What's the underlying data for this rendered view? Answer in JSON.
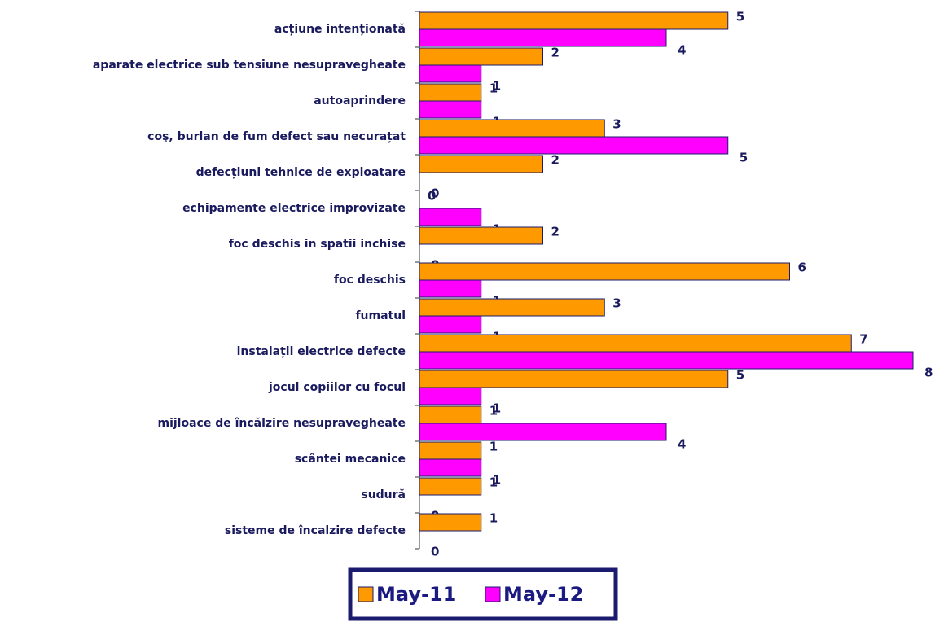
{
  "chart_data": {
    "type": "bar",
    "orientation": "horizontal",
    "categories": [
      "acțiune intenționată",
      "aparate electrice sub tensiune nesupravegheate",
      "autoaprindere",
      "coş, burlan  de fum defect sau necurațat",
      "defecțiuni tehnice de exploatare",
      "echipamente electrice improvizate",
      "foc deschis in spatii inchise",
      "foc deschis",
      "fumatul",
      "instalații electrice defecte",
      "jocul copiilor cu focul",
      "mijloace de încălzire nesupravegheate",
      "scântei mecanice",
      "sudură",
      "sisteme de încalzire defecte"
    ],
    "series": [
      {
        "name": "May-11",
        "color": "#ff9900",
        "values": [
          5,
          2,
          1,
          3,
          2,
          0,
          2,
          6,
          3,
          7,
          5,
          1,
          1,
          1,
          1
        ]
      },
      {
        "name": "May-12",
        "color": "#ff00ff",
        "values": [
          4,
          1,
          1,
          5,
          0,
          1,
          0,
          1,
          1,
          8,
          1,
          4,
          1,
          0,
          0
        ]
      }
    ],
    "xlim": [
      0,
      8
    ],
    "legend": "bottom"
  }
}
